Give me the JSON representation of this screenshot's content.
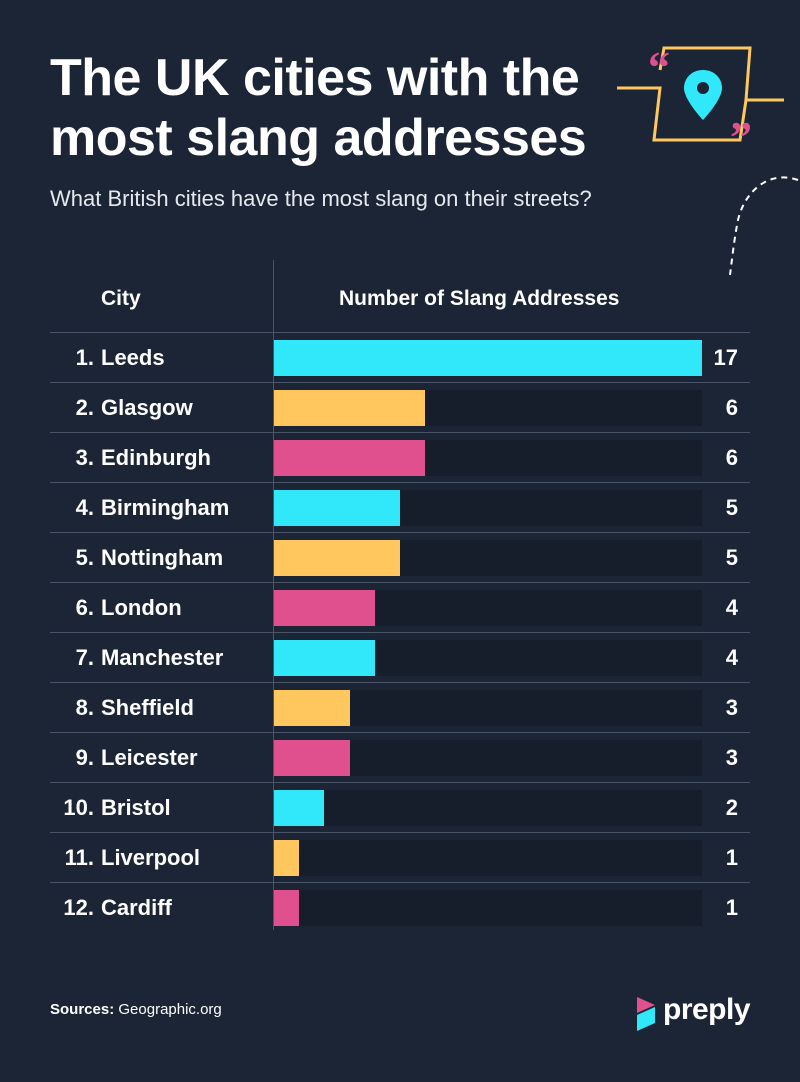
{
  "header": {
    "title_line1": "The UK cities with the",
    "title_line2": "most slang addresses",
    "subtitle": "What British cities have the most slang on their streets?"
  },
  "columns": {
    "city": "City",
    "number": "Number of Slang Addresses"
  },
  "colors": {
    "background": "#1b2535",
    "cyan": "#31e8fb",
    "yellow": "#ffc75e",
    "pink": "#e0508f",
    "track": "#161e2b"
  },
  "chart_data": {
    "type": "bar",
    "orientation": "horizontal",
    "title": "The UK cities with the most slang addresses",
    "subtitle": "What British cities have the most slang on their streets?",
    "xlabel": "Number of Slang Addresses",
    "ylabel": "City",
    "xlim": [
      0,
      17
    ],
    "grid": false,
    "legend": "none",
    "ranks": [
      "1.",
      "2.",
      "3.",
      "4.",
      "5.",
      "6.",
      "7.",
      "8.",
      "9.",
      "10.",
      "11.",
      "12."
    ],
    "categories": [
      "Leeds",
      "Glasgow",
      "Edinburgh",
      "Birmingham",
      "Nottingham",
      "London",
      "Manchester",
      "Sheffield",
      "Leicester",
      "Bristol",
      "Liverpool",
      "Cardiff"
    ],
    "values": [
      17,
      6,
      6,
      5,
      5,
      4,
      4,
      3,
      3,
      2,
      1,
      1
    ],
    "bar_colors": [
      "#31e8fb",
      "#ffc75e",
      "#e0508f",
      "#31e8fb",
      "#ffc75e",
      "#e0508f",
      "#31e8fb",
      "#ffc75e",
      "#e0508f",
      "#31e8fb",
      "#ffc75e",
      "#e0508f"
    ]
  },
  "footer": {
    "sources_label": "Sources:",
    "sources_value": "Geographic.org",
    "brand": "preply"
  },
  "icons": [
    "location-pin-icon",
    "quote-open-icon",
    "quote-close-icon",
    "preply-logo-icon"
  ]
}
